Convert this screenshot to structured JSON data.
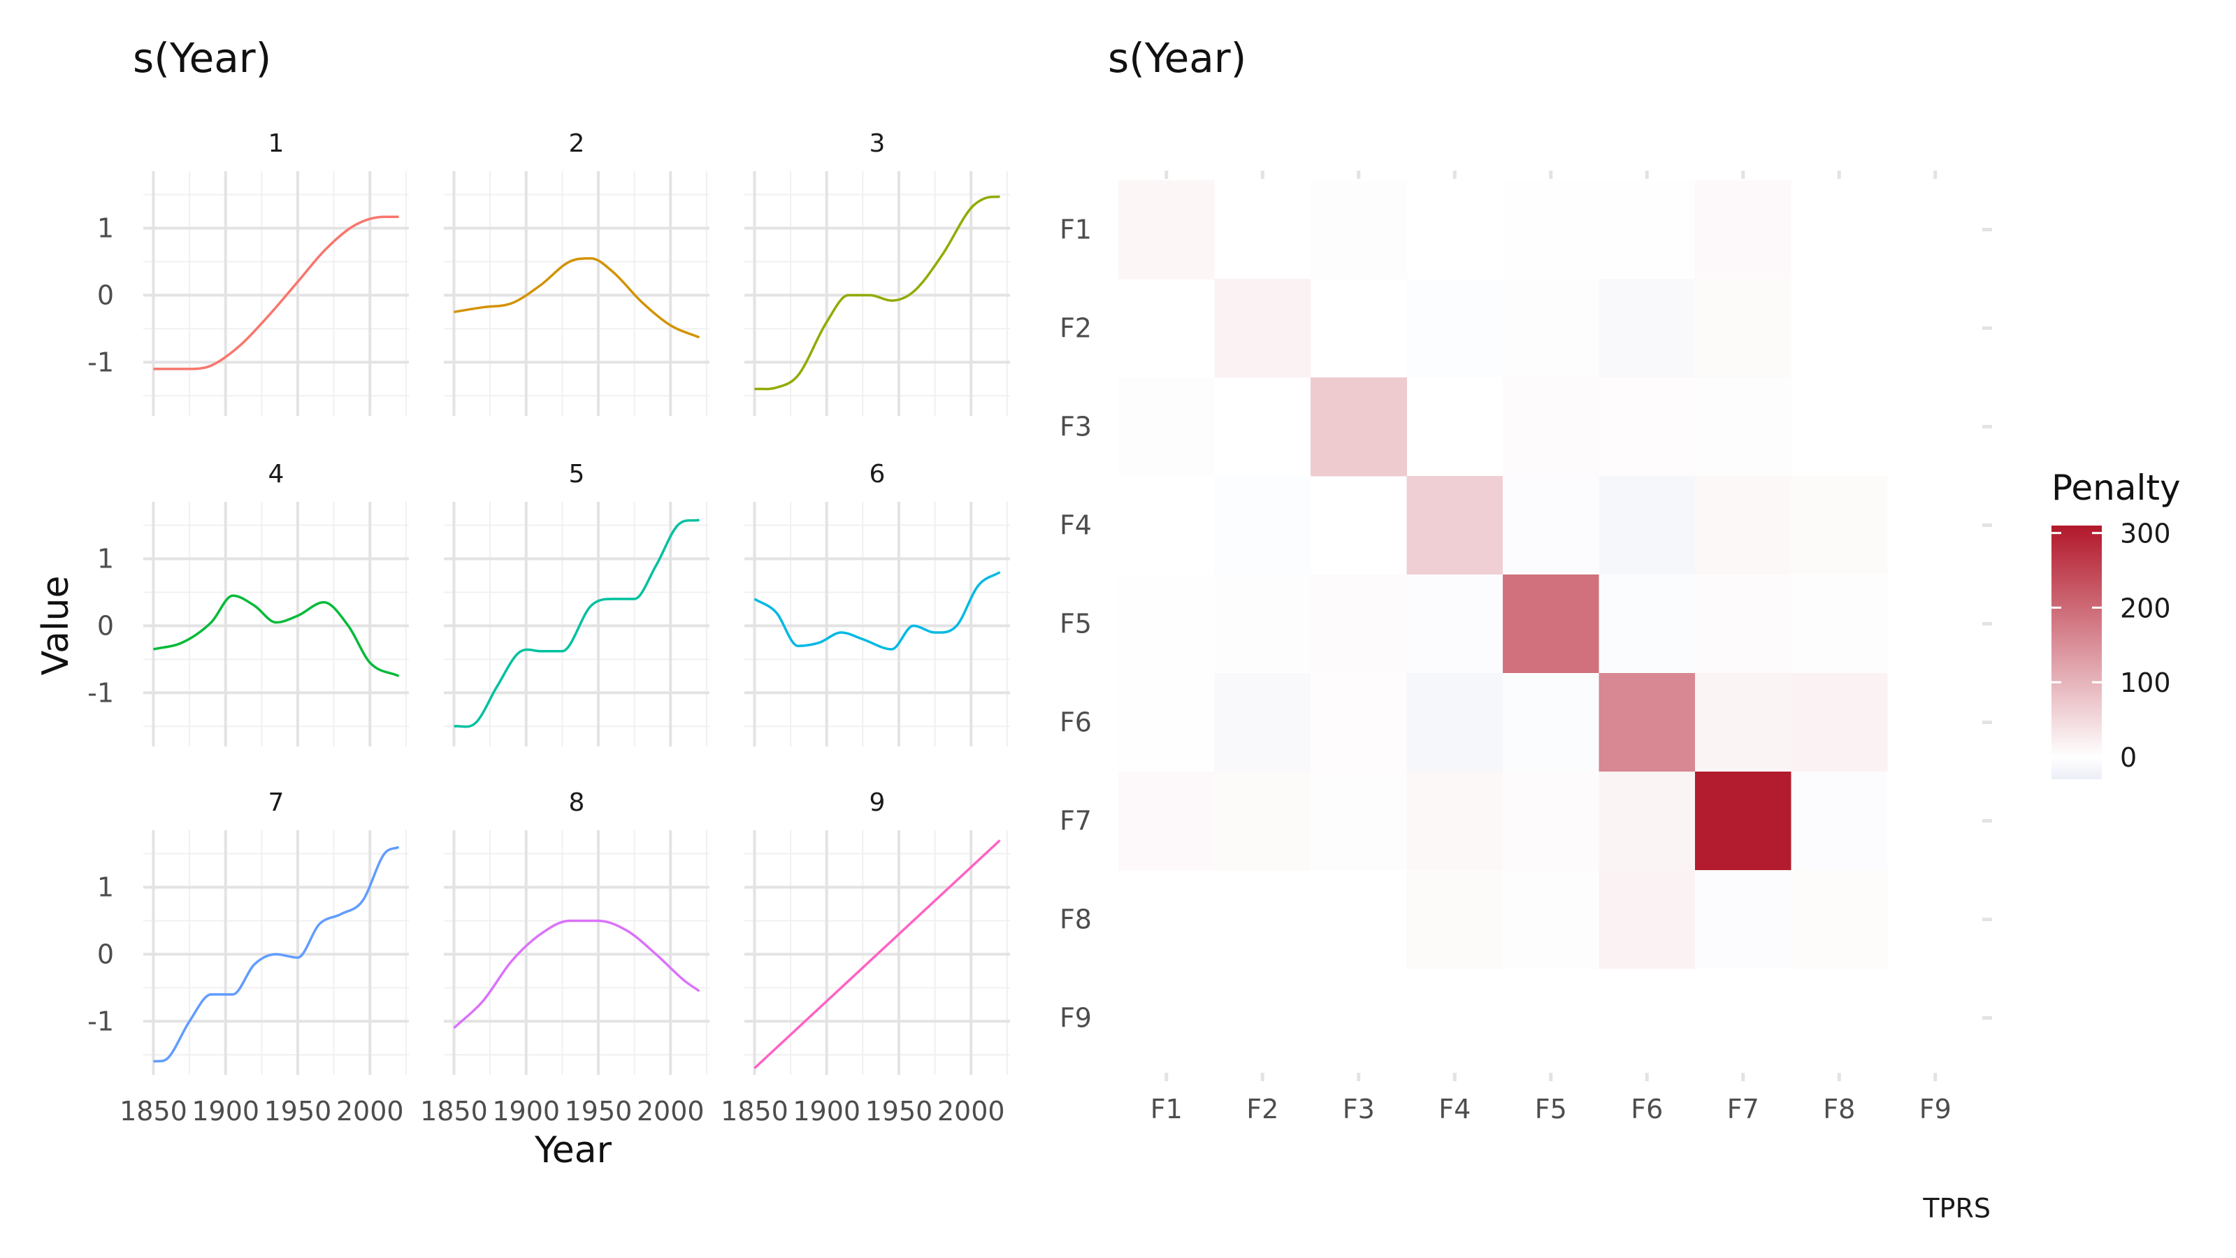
{
  "chart_data": [
    {
      "type": "line",
      "title": "s(Year)",
      "xlabel": "Year",
      "ylabel": "Value",
      "xlim": [
        1843,
        2027
      ],
      "ylim": [
        -1.8,
        1.85
      ],
      "x_ticks": [
        1850,
        1900,
        1950,
        2000
      ],
      "y_ticks": [
        -1,
        0,
        1
      ],
      "grid": true,
      "facets": [
        {
          "name": "1",
          "color": "#F8766D",
          "x": [
            1850,
            1875,
            1890,
            1910,
            1930,
            1950,
            1970,
            1990,
            2010,
            2020
          ],
          "values": [
            -1.1,
            -1.1,
            -1.05,
            -0.75,
            -0.3,
            0.2,
            0.7,
            1.05,
            1.17,
            1.17
          ]
        },
        {
          "name": "2",
          "color": "#D39200",
          "x": [
            1850,
            1870,
            1890,
            1910,
            1930,
            1945,
            1960,
            1980,
            2000,
            2020
          ],
          "values": [
            -0.25,
            -0.18,
            -0.12,
            0.15,
            0.5,
            0.55,
            0.35,
            -0.1,
            -0.45,
            -0.63
          ]
        },
        {
          "name": "3",
          "color": "#93AA00",
          "x": [
            1850,
            1865,
            1880,
            1900,
            1915,
            1930,
            1945,
            1960,
            1980,
            2000,
            2010,
            2020
          ],
          "values": [
            -1.4,
            -1.38,
            -1.2,
            -0.4,
            0.0,
            0.0,
            -0.08,
            0.05,
            0.6,
            1.3,
            1.45,
            1.47
          ]
        },
        {
          "name": "4",
          "color": "#00BA38",
          "x": [
            1850,
            1870,
            1890,
            1905,
            1920,
            1935,
            1950,
            1968,
            1985,
            2000,
            2020
          ],
          "values": [
            -0.35,
            -0.25,
            0.05,
            0.45,
            0.3,
            0.05,
            0.15,
            0.35,
            0.0,
            -0.55,
            -0.75
          ]
        },
        {
          "name": "5",
          "color": "#00C19F",
          "x": [
            1850,
            1865,
            1880,
            1895,
            1910,
            1925,
            1945,
            1960,
            1975,
            1990,
            2005,
            2020
          ],
          "values": [
            -1.5,
            -1.45,
            -0.9,
            -0.4,
            -0.38,
            -0.38,
            0.3,
            0.4,
            0.4,
            0.9,
            1.5,
            1.58
          ]
        },
        {
          "name": "6",
          "color": "#00B9E3",
          "x": [
            1850,
            1865,
            1880,
            1895,
            1910,
            1925,
            1945,
            1960,
            1975,
            1990,
            2005,
            2020
          ],
          "values": [
            0.4,
            0.2,
            -0.3,
            -0.25,
            -0.1,
            -0.2,
            -0.35,
            0.0,
            -0.1,
            0.0,
            0.6,
            0.8
          ]
        },
        {
          "name": "7",
          "color": "#619CFF",
          "x": [
            1850,
            1860,
            1875,
            1890,
            1905,
            1920,
            1935,
            1950,
            1965,
            1980,
            1995,
            2010,
            2020
          ],
          "values": [
            -1.6,
            -1.55,
            -1.0,
            -0.6,
            -0.6,
            -0.15,
            0.0,
            -0.05,
            0.45,
            0.6,
            0.8,
            1.5,
            1.6
          ]
        },
        {
          "name": "8",
          "color": "#DB72FB",
          "x": [
            1850,
            1870,
            1890,
            1910,
            1930,
            1950,
            1970,
            1990,
            2010,
            2020
          ],
          "values": [
            -1.1,
            -0.7,
            -0.1,
            0.3,
            0.5,
            0.5,
            0.35,
            0.0,
            -0.4,
            -0.55
          ]
        },
        {
          "name": "9",
          "color": "#FF61C3",
          "x": [
            1850,
            2020
          ],
          "values": [
            -1.7,
            1.7
          ]
        }
      ]
    },
    {
      "type": "heatmap",
      "title": "s(Year)",
      "caption": "TPRS",
      "x_categories": [
        "F1",
        "F2",
        "F3",
        "F4",
        "F5",
        "F6",
        "F7",
        "F8",
        "F9"
      ],
      "y_categories": [
        "F1",
        "F2",
        "F3",
        "F4",
        "F5",
        "F6",
        "F7",
        "F8",
        "F9"
      ],
      "values": [
        [
          12,
          0,
          3,
          0,
          -2,
          -1,
          8,
          0,
          0
        ],
        [
          0,
          18,
          0,
          -4,
          -3,
          -10,
          7,
          0,
          0
        ],
        [
          3,
          0,
          70,
          0,
          5,
          4,
          -3,
          0,
          0
        ],
        [
          0,
          -4,
          0,
          65,
          -5,
          -15,
          10,
          7,
          0
        ],
        [
          -2,
          -3,
          5,
          -5,
          190,
          -6,
          5,
          3,
          0
        ],
        [
          -1,
          -10,
          4,
          -15,
          -6,
          160,
          15,
          18,
          0
        ],
        [
          8,
          7,
          -3,
          10,
          5,
          15,
          305,
          -5,
          0
        ],
        [
          0,
          0,
          0,
          7,
          3,
          18,
          -5,
          6,
          0
        ],
        [
          0,
          0,
          0,
          0,
          0,
          0,
          0,
          0,
          0
        ]
      ],
      "legend": {
        "title": "Penalty",
        "ticks": [
          0,
          100,
          200,
          300
        ],
        "range": [
          -30,
          310
        ],
        "placement": "right"
      },
      "colors": {
        "low": "#ECEEF7",
        "mid": "#FFFFFF",
        "high": "#B2182B"
      }
    }
  ]
}
